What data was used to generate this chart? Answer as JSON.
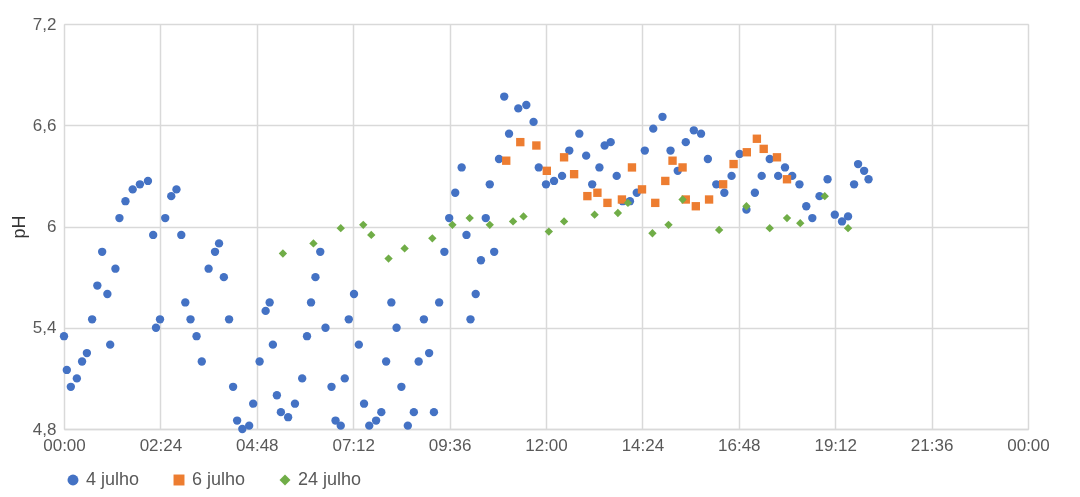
{
  "chart_data": {
    "type": "scatter",
    "ylabel": "pH",
    "legend": "bottom",
    "grid": true,
    "xlim": [
      0,
      24
    ],
    "ylim": [
      4.8,
      7.2
    ],
    "xticks": [
      {
        "value": 0,
        "label": "00:00"
      },
      {
        "value": 2.4,
        "label": "02:24"
      },
      {
        "value": 4.8,
        "label": "04:48"
      },
      {
        "value": 7.2,
        "label": "07:12"
      },
      {
        "value": 9.6,
        "label": "09:36"
      },
      {
        "value": 12,
        "label": "12:00"
      },
      {
        "value": 14.4,
        "label": "14:24"
      },
      {
        "value": 16.8,
        "label": "16:48"
      },
      {
        "value": 19.2,
        "label": "19:12"
      },
      {
        "value": 21.6,
        "label": "21:36"
      },
      {
        "value": 24,
        "label": "00:00"
      }
    ],
    "yticks": [
      {
        "value": 4.8,
        "label": "4,8"
      },
      {
        "value": 5.4,
        "label": "5,4"
      },
      {
        "value": 6,
        "label": "6"
      },
      {
        "value": 6.6,
        "label": "6,6"
      },
      {
        "value": 7.2,
        "label": "7,2"
      }
    ],
    "series": [
      {
        "name": "4 julho",
        "color": "#4472c4",
        "marker": "circle",
        "x": [
          0.0,
          0.07,
          0.17,
          0.32,
          0.45,
          0.57,
          0.7,
          0.83,
          0.95,
          1.08,
          1.15,
          1.28,
          1.38,
          1.53,
          1.71,
          1.89,
          2.09,
          2.22,
          2.29,
          2.39,
          2.52,
          2.67,
          2.8,
          2.92,
          3.02,
          3.15,
          3.3,
          3.43,
          3.6,
          3.76,
          3.86,
          3.98,
          4.11,
          4.21,
          4.31,
          4.44,
          4.61,
          4.71,
          4.87,
          5.02,
          5.12,
          5.2,
          5.3,
          5.4,
          5.58,
          5.75,
          5.93,
          6.05,
          6.15,
          6.26,
          6.38,
          6.51,
          6.66,
          6.76,
          6.89,
          6.99,
          7.09,
          7.22,
          7.34,
          7.47,
          7.6,
          7.77,
          7.9,
          8.02,
          8.15,
          8.28,
          8.4,
          8.56,
          8.71,
          8.83,
          8.96,
          9.09,
          9.21,
          9.34,
          9.47,
          9.59,
          9.74,
          9.9,
          10.02,
          10.12,
          10.25,
          10.38,
          10.5,
          10.6,
          10.71,
          10.83,
          10.96,
          11.08,
          11.31,
          11.51,
          11.69,
          11.82,
          12.0,
          12.2,
          12.4,
          12.58,
          12.83,
          13.0,
          13.15,
          13.33,
          13.46,
          13.61,
          13.76,
          13.91,
          14.09,
          14.26,
          14.46,
          14.67,
          14.9,
          15.1,
          15.28,
          15.48,
          15.68,
          15.86,
          16.03,
          16.24,
          16.44,
          16.62,
          16.82,
          16.99,
          17.2,
          17.37,
          17.57,
          17.78,
          17.95,
          18.13,
          18.31,
          18.48,
          18.63,
          18.81,
          19.01,
          19.19,
          19.37,
          19.52,
          19.67,
          19.77,
          19.92,
          20.03
        ],
        "values": [
          5.35,
          5.15,
          5.05,
          5.1,
          5.2,
          5.25,
          5.45,
          5.65,
          5.85,
          5.6,
          5.3,
          5.75,
          6.05,
          6.15,
          6.22,
          6.25,
          6.27,
          5.95,
          5.4,
          5.45,
          6.05,
          6.18,
          6.22,
          5.95,
          5.55,
          5.45,
          5.35,
          5.2,
          5.75,
          5.85,
          5.9,
          5.7,
          5.45,
          5.05,
          4.85,
          4.8,
          4.82,
          4.95,
          5.2,
          5.5,
          5.55,
          5.3,
          5.0,
          4.9,
          4.87,
          4.95,
          5.1,
          5.35,
          5.55,
          5.7,
          5.85,
          5.4,
          5.05,
          4.85,
          4.82,
          5.1,
          5.45,
          5.6,
          5.3,
          4.95,
          4.82,
          4.85,
          4.9,
          5.2,
          5.55,
          5.4,
          5.05,
          4.82,
          4.9,
          5.2,
          5.45,
          5.25,
          4.9,
          5.55,
          5.85,
          6.05,
          6.2,
          6.35,
          5.95,
          5.45,
          5.6,
          5.8,
          6.05,
          6.25,
          5.85,
          6.4,
          6.77,
          6.55,
          6.7,
          6.72,
          6.62,
          6.35,
          6.25,
          6.27,
          6.3,
          6.45,
          6.55,
          6.42,
          6.25,
          6.35,
          6.48,
          6.5,
          6.3,
          6.15,
          6.15,
          6.2,
          6.45,
          6.58,
          6.65,
          6.45,
          6.33,
          6.5,
          6.57,
          6.55,
          6.4,
          6.25,
          6.2,
          6.3,
          6.43,
          6.1,
          6.2,
          6.3,
          6.4,
          6.3,
          6.35,
          6.3,
          6.25,
          6.12,
          6.05,
          6.18,
          6.28,
          6.07,
          6.03,
          6.06,
          6.25,
          6.37,
          6.33,
          6.28
        ]
      },
      {
        "name": "6 julho",
        "color": "#ed7d31",
        "marker": "square",
        "x": [
          11.01,
          11.36,
          11.76,
          12.02,
          12.45,
          12.7,
          13.03,
          13.28,
          13.53,
          13.89,
          14.14,
          14.39,
          14.72,
          14.97,
          15.15,
          15.4,
          15.48,
          15.73,
          16.06,
          16.41,
          16.67,
          17.0,
          17.25,
          17.42,
          17.75,
          18.0
        ],
        "values": [
          6.39,
          6.5,
          6.48,
          6.33,
          6.41,
          6.31,
          6.18,
          6.2,
          6.14,
          6.16,
          6.35,
          6.22,
          6.14,
          6.27,
          6.39,
          6.35,
          6.16,
          6.12,
          6.16,
          6.25,
          6.37,
          6.44,
          6.52,
          6.46,
          6.41,
          6.28
        ]
      },
      {
        "name": "24 julho",
        "color": "#70ad47",
        "marker": "diamond",
        "x": [
          5.45,
          6.21,
          6.89,
          7.45,
          7.65,
          8.08,
          8.48,
          9.17,
          9.67,
          10.1,
          10.6,
          11.18,
          11.44,
          12.07,
          12.45,
          13.21,
          13.79,
          14.04,
          14.65,
          15.05,
          15.4,
          16.31,
          16.99,
          17.57,
          18.0,
          18.33,
          18.94,
          19.52
        ],
        "values": [
          5.84,
          5.9,
          5.99,
          6.01,
          5.95,
          5.81,
          5.87,
          5.93,
          6.01,
          6.05,
          6.01,
          6.03,
          6.06,
          5.97,
          6.03,
          6.07,
          6.08,
          6.14,
          5.96,
          6.01,
          6.16,
          5.98,
          6.12,
          5.99,
          6.05,
          6.02,
          6.18,
          5.99
        ]
      }
    ]
  }
}
